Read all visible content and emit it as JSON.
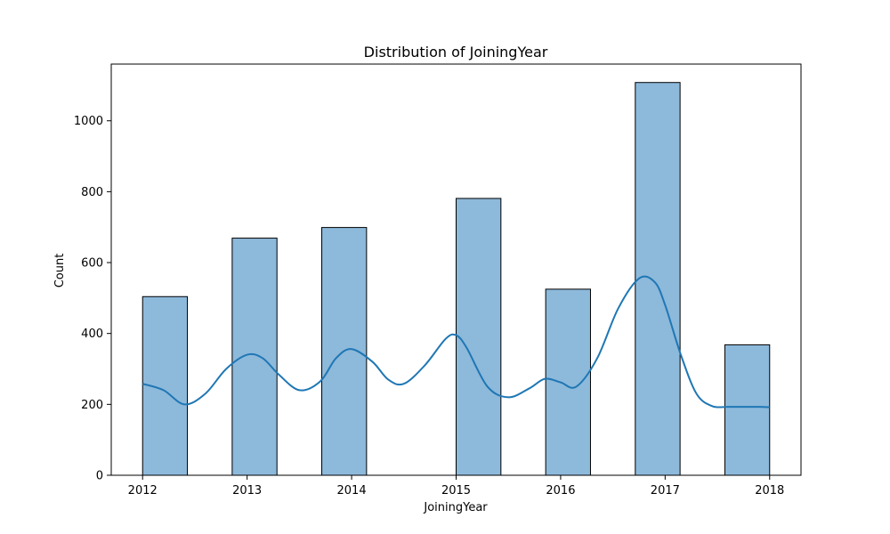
{
  "chart_data": {
    "type": "bar",
    "title": "Distribution of JoiningYear",
    "xlabel": "JoiningYear",
    "ylabel": "Count",
    "xlim": [
      2011.7,
      2018.3
    ],
    "ylim": [
      0,
      1160
    ],
    "x_ticks": [
      2012,
      2013,
      2014,
      2015,
      2016,
      2017,
      2018
    ],
    "y_ticks": [
      0,
      200,
      400,
      600,
      800,
      1000
    ],
    "grid": false,
    "legend": "none",
    "bars": [
      {
        "x0": 2012.0,
        "x1": 2012.4286,
        "value": 504
      },
      {
        "x0": 2012.8571,
        "x1": 2013.2857,
        "value": 669
      },
      {
        "x0": 2013.7143,
        "x1": 2014.1429,
        "value": 699
      },
      {
        "x0": 2015.0,
        "x1": 2015.4286,
        "value": 781
      },
      {
        "x0": 2015.8571,
        "x1": 2016.2857,
        "value": 525
      },
      {
        "x0": 2016.7143,
        "x1": 2017.1429,
        "value": 1108
      },
      {
        "x0": 2017.5714,
        "x1": 2018.0,
        "value": 368
      }
    ],
    "kde": {
      "x": [
        2012.0,
        2012.2,
        2012.4,
        2012.6,
        2012.8,
        2013.0,
        2013.15,
        2013.3,
        2013.5,
        2013.7,
        2013.85,
        2014.0,
        2014.2,
        2014.35,
        2014.5,
        2014.7,
        2014.9,
        2015.0,
        2015.1,
        2015.3,
        2015.5,
        2015.7,
        2015.85,
        2016.0,
        2016.15,
        2016.35,
        2016.55,
        2016.75,
        2016.9,
        2017.0,
        2017.15,
        2017.3,
        2017.45,
        2017.6,
        2017.75,
        2017.9,
        2018.0
      ],
      "y": [
        258,
        240,
        200,
        230,
        300,
        340,
        330,
        285,
        240,
        265,
        330,
        356,
        320,
        270,
        258,
        310,
        385,
        395,
        360,
        250,
        220,
        245,
        272,
        262,
        250,
        330,
        470,
        555,
        545,
        480,
        340,
        230,
        195,
        193,
        193,
        193,
        192
      ]
    }
  },
  "colors": {
    "bar_fill": "#8db9db",
    "bar_edge": "#000000",
    "kde_line": "#1f77b4",
    "axes": "#000000",
    "background": "#ffffff"
  }
}
